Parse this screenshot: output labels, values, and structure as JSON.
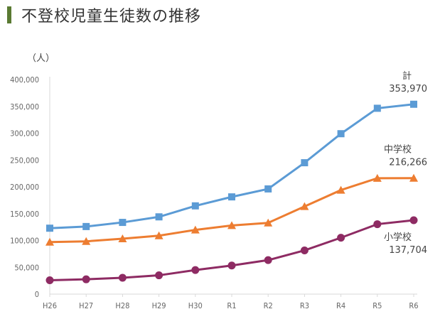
{
  "title": "不登校児童生徒数の推移",
  "chart_data": {
    "type": "line",
    "unit_label": "（人）",
    "categories": [
      "H26",
      "H27",
      "H28",
      "H29",
      "H30",
      "R1",
      "R2",
      "R3",
      "R4",
      "R5",
      "R6"
    ],
    "ylim": [
      0,
      400000
    ],
    "yticks": [
      "0",
      "50,000",
      "100,000",
      "150,000",
      "200,000",
      "250,000",
      "300,000",
      "350,000",
      "400,000"
    ],
    "grid": false,
    "series": [
      {
        "name": "計",
        "color": "#5B9BD5",
        "marker": "square",
        "end_label": "353,970",
        "values": [
          122897,
          125991,
          133683,
          144031,
          164528,
          181272,
          196127,
          244940,
          299048,
          346482,
          353970
        ]
      },
      {
        "name": "中学校",
        "color": "#ED7D31",
        "marker": "triangle",
        "end_label": "216,266",
        "values": [
          97033,
          98408,
          103235,
          108999,
          119687,
          127922,
          132777,
          163442,
          193936,
          216112,
          216266
        ]
      },
      {
        "name": "小学校",
        "color": "#8E2B63",
        "marker": "circle",
        "end_label": "137,704",
        "values": [
          25864,
          27583,
          30448,
          35032,
          44841,
          53350,
          63350,
          81498,
          105112,
          130370,
          137704
        ]
      }
    ]
  }
}
